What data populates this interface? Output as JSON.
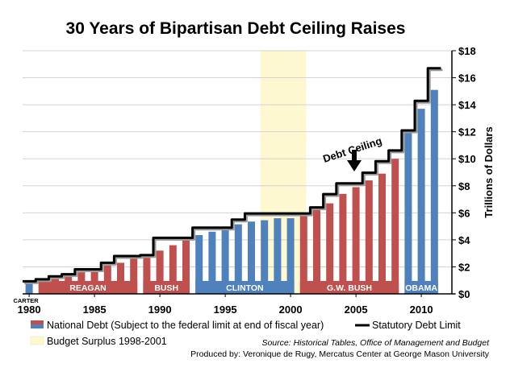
{
  "chart_data": {
    "type": "bar",
    "title": "30 Years of Bipartisan Debt Ceiling Raises",
    "ylabel": "Trillions of Dollars",
    "ylim": [
      0,
      18
    ],
    "yticks": [
      "$0",
      "$2",
      "$4",
      "$6",
      "$8",
      "$10",
      "$12",
      "$14",
      "$16",
      "$18"
    ],
    "xticks": [
      "1980",
      "1985",
      "1990",
      "1995",
      "2000",
      "2005",
      "2010"
    ],
    "x": [
      1980,
      1981,
      1982,
      1983,
      1984,
      1985,
      1986,
      1987,
      1988,
      1989,
      1990,
      1991,
      1992,
      1993,
      1994,
      1995,
      1996,
      1997,
      1998,
      1999,
      2000,
      2001,
      2002,
      2003,
      2004,
      2005,
      2006,
      2007,
      2008,
      2009,
      2010,
      2011
    ],
    "series": [
      {
        "name": "National Debt (Subject to the federal limit at end of fiscal year)",
        "type": "bar",
        "values": [
          0.9,
          1.0,
          1.1,
          1.4,
          1.6,
          1.8,
          2.1,
          2.3,
          2.6,
          2.9,
          3.2,
          3.6,
          4.0,
          4.35,
          4.6,
          4.9,
          5.15,
          5.35,
          5.45,
          5.6,
          5.6,
          5.75,
          6.2,
          6.7,
          7.4,
          7.9,
          8.4,
          8.9,
          10.0,
          11.9,
          13.7,
          15.1
        ]
      },
      {
        "name": "Statutory Debt Limit",
        "type": "step-line",
        "values": [
          0.93,
          1.08,
          1.3,
          1.45,
          1.82,
          1.82,
          2.3,
          2.8,
          2.8,
          2.87,
          4.15,
          4.15,
          4.15,
          4.9,
          4.9,
          4.9,
          5.5,
          5.95,
          5.95,
          5.95,
          5.95,
          5.95,
          6.4,
          7.38,
          8.18,
          8.18,
          8.97,
          9.82,
          10.62,
          12.1,
          14.29,
          16.7
        ]
      }
    ],
    "colors": {
      "democrat_bar": "#4f81bd",
      "republican_bar": "#c0504d",
      "surplus_band": "#fdf8d0",
      "limit_line": "#000000"
    },
    "presidents": [
      {
        "label": "CARTER",
        "start": 1980,
        "end": 1980,
        "party": "democrat"
      },
      {
        "label": "REAGAN",
        "start": 1981,
        "end": 1988,
        "party": "republican"
      },
      {
        "label": "BUSH",
        "start": 1989,
        "end": 1992,
        "party": "republican"
      },
      {
        "label": "CLINTON",
        "start": 1993,
        "end": 2000,
        "party": "democrat"
      },
      {
        "label": "G.W. BUSH",
        "start": 2001,
        "end": 2008,
        "party": "republican"
      },
      {
        "label": "OBAMA",
        "start": 2009,
        "end": 2011,
        "party": "democrat"
      }
    ],
    "surplus": {
      "start": 1998,
      "end": 2001,
      "label": "Budget Surplus 1998-2001"
    },
    "annotation": {
      "text": "Debt Ceiling",
      "year": 2005
    },
    "source_prefix": "Source:",
    "source_text": "Historical Tables, Office of Management and Budget",
    "credit": "Produced by: Veronique de Rugy, Mercatus Center at George Mason University"
  }
}
